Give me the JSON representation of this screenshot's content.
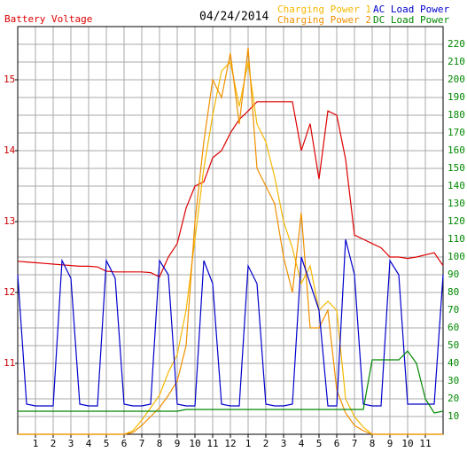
{
  "chart_data": {
    "type": "line",
    "title": "04/24/2014",
    "x": [
      0,
      0.5,
      1,
      1.5,
      2,
      2.5,
      3,
      3.5,
      4,
      4.5,
      5,
      5.5,
      6,
      6.5,
      7,
      7.5,
      8,
      8.5,
      9,
      9.5,
      10,
      10.5,
      11,
      11.5,
      12,
      12.5,
      13,
      13.5,
      14,
      14.5,
      15,
      15.5,
      16,
      16.5,
      17,
      17.5,
      18,
      18.5,
      19,
      19.5,
      20,
      20.5,
      21,
      21.5,
      22,
      22.5,
      23,
      23.5,
      24
    ],
    "xlim": [
      0,
      24
    ],
    "xticks": [
      1,
      2,
      3,
      4,
      5,
      6,
      7,
      8,
      9,
      10,
      11,
      12,
      {
        "value": 13,
        "label": "1"
      },
      {
        "value": 14,
        "label": "2"
      },
      {
        "value": 15,
        "label": "3"
      },
      {
        "value": 16,
        "label": "4"
      },
      {
        "value": 17,
        "label": "5"
      },
      {
        "value": 18,
        "label": "6"
      },
      {
        "value": 19,
        "label": "7"
      },
      {
        "value": 20,
        "label": "8"
      },
      {
        "value": 21,
        "label": "9"
      },
      {
        "value": 22,
        "label": "10"
      },
      {
        "value": 23,
        "label": "11"
      }
    ],
    "ylim": [
      10,
      15.75
    ],
    "yticks": [
      11,
      12,
      13,
      14,
      15
    ],
    "y2lim": [
      0,
      230
    ],
    "y2ticks": [
      10,
      20,
      30,
      40,
      50,
      60,
      70,
      80,
      90,
      100,
      110,
      120,
      130,
      140,
      150,
      160,
      170,
      180,
      190,
      200,
      210,
      220
    ],
    "grid": true,
    "series": [
      {
        "name": "Battery Voltage",
        "color": "#dd0000",
        "axis": "y",
        "values": [
          12.44,
          12.43,
          12.42,
          12.41,
          12.4,
          12.39,
          12.38,
          12.37,
          12.37,
          12.36,
          12.3,
          12.29,
          12.29,
          12.29,
          12.29,
          12.28,
          12.22,
          12.5,
          12.69,
          13.19,
          13.5,
          13.56,
          13.9,
          14.0,
          14.25,
          14.44,
          14.56,
          14.69,
          14.69,
          14.69,
          14.69,
          14.69,
          14.0,
          14.38,
          13.6,
          14.56,
          14.5,
          13.88,
          12.81,
          12.75,
          12.69,
          12.63,
          12.5,
          12.5,
          12.48,
          12.5,
          12.53,
          12.56,
          12.38
        ]
      },
      {
        "name": "Charging Power 1",
        "color": "#f5b800",
        "axis": "y2",
        "values": [
          0,
          0,
          0,
          0,
          0,
          0,
          0,
          0,
          0,
          0,
          0,
          0,
          0,
          2,
          8,
          15,
          22,
          35,
          45,
          70,
          110,
          150,
          180,
          205,
          210,
          185,
          210,
          175,
          165,
          145,
          120,
          105,
          85,
          95,
          70,
          75,
          70,
          20,
          10,
          4,
          0,
          0,
          0,
          0,
          0,
          0,
          0,
          0,
          0
        ]
      },
      {
        "name": "Charging Power 2",
        "color": "#f09000",
        "axis": "y2",
        "values": [
          0,
          0,
          0,
          0,
          0,
          0,
          0,
          0,
          0,
          0,
          0,
          0,
          0,
          1,
          5,
          10,
          15,
          22,
          30,
          50,
          120,
          165,
          200,
          190,
          215,
          175,
          218,
          150,
          140,
          130,
          100,
          80,
          125,
          60,
          60,
          70,
          25,
          12,
          5,
          2,
          0,
          0,
          0,
          0,
          0,
          0,
          0,
          0,
          0
        ]
      },
      {
        "name": "AC Load Power",
        "color": "#0000cc",
        "axis": "y2",
        "values": [
          90,
          17,
          16,
          16,
          16,
          98,
          88,
          17,
          16,
          16,
          98,
          88,
          17,
          16,
          16,
          17,
          98,
          90,
          17,
          16,
          16,
          98,
          85,
          17,
          16,
          16,
          95,
          85,
          17,
          16,
          16,
          17,
          100,
          85,
          70,
          16,
          16,
          110,
          90,
          17,
          16,
          16,
          98,
          90,
          17,
          17,
          17,
          17,
          90
        ]
      },
      {
        "name": "DC Load Power",
        "color": "#008800",
        "axis": "y2",
        "values": [
          13,
          13,
          13,
          13,
          13,
          13,
          13,
          13,
          13,
          13,
          13,
          13,
          13,
          13,
          13,
          13,
          13,
          13,
          13,
          14,
          14,
          14,
          14,
          14,
          14,
          14,
          14,
          14,
          14,
          14,
          14,
          14,
          14,
          14,
          14,
          14,
          14,
          14,
          14,
          14,
          42,
          42,
          42,
          42,
          47,
          40,
          20,
          12,
          13
        ]
      }
    ]
  }
}
